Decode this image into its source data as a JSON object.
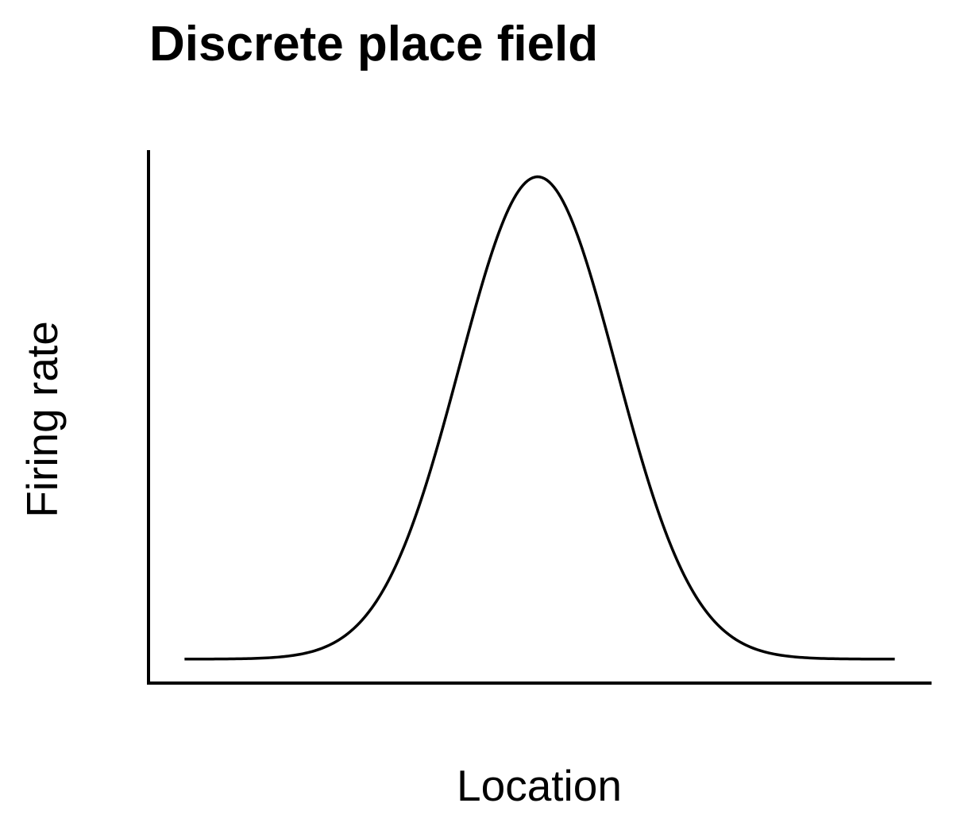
{
  "chart_data": {
    "type": "line",
    "title": "Discrete place field",
    "xlabel": "Location",
    "ylabel": "Firing rate",
    "grid": false,
    "legend": "none",
    "xlim": [
      0,
      1
    ],
    "ylim": [
      0,
      1
    ],
    "series": [
      {
        "curve": "gaussian",
        "x": [
          0.046,
          0.1,
          0.2,
          0.25,
          0.3,
          0.35,
          0.4,
          0.45,
          0.5,
          0.55,
          0.6,
          0.65,
          0.7,
          0.75,
          0.8,
          0.9,
          0.953
        ],
        "y": [
          0.045,
          0.046,
          0.055,
          0.081,
          0.146,
          0.292,
          0.523,
          0.774,
          0.943,
          0.923,
          0.729,
          0.479,
          0.264,
          0.132,
          0.072,
          0.046,
          0.045
        ],
        "color": "#000000"
      }
    ]
  }
}
